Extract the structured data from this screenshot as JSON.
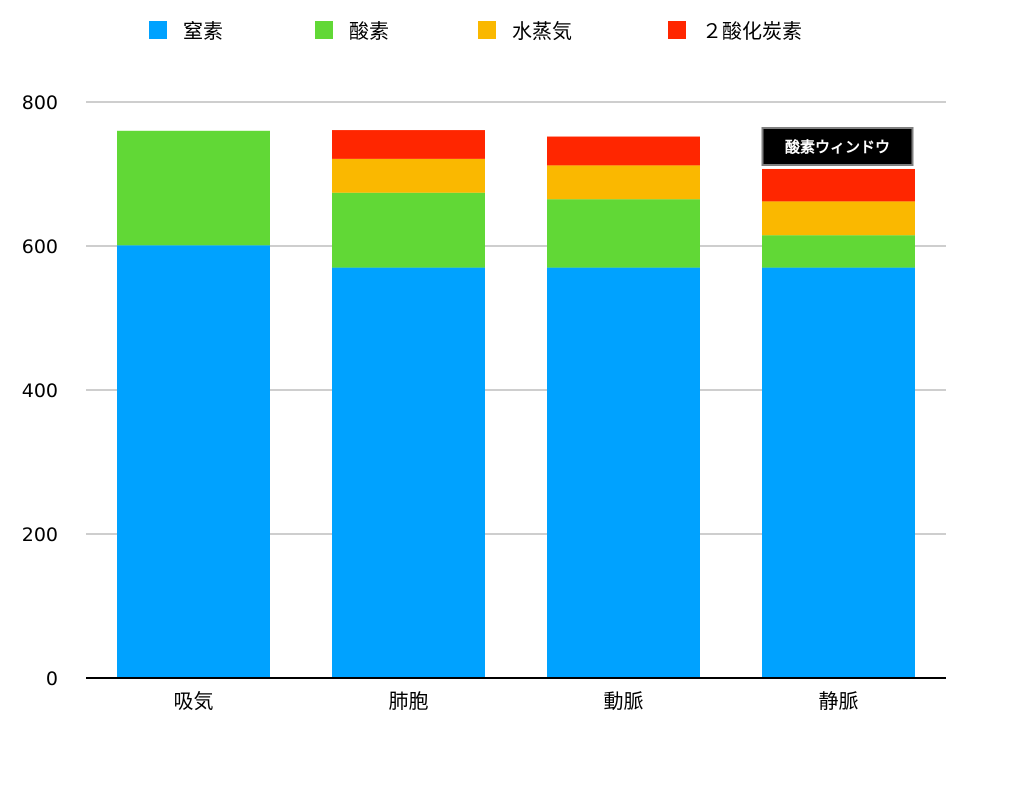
{
  "chart_data": {
    "type": "bar",
    "stacked": true,
    "categories": [
      "吸気",
      "肺胞",
      "動脈",
      "静脈"
    ],
    "series": [
      {
        "name": "窒素",
        "color": "#00A2FF",
        "values": [
          601,
          570,
          570,
          570
        ]
      },
      {
        "name": "酸素",
        "color": "#61D836",
        "values": [
          159,
          104,
          95,
          45
        ]
      },
      {
        "name": "水蒸気",
        "color": "#FAB800",
        "values": [
          0,
          47,
          47,
          47
        ]
      },
      {
        "name": "２酸化炭素",
        "color": "#FF2600",
        "values": [
          0,
          40,
          40,
          45
        ]
      }
    ],
    "ylim": [
      0,
      800
    ],
    "yticks": [
      0,
      200,
      400,
      600,
      800
    ],
    "grid": true,
    "legend_position": "top",
    "annotation": {
      "text": "酸素ウィンドウ",
      "category": "静脈"
    }
  }
}
